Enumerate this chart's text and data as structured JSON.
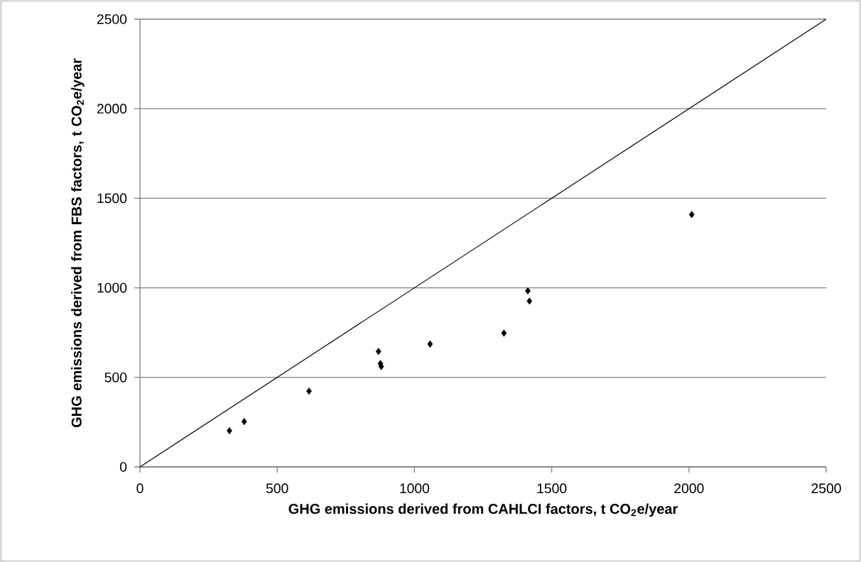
{
  "chart_data": {
    "type": "scatter",
    "xlabel": "GHG emissions derived from CAHLCI factors, t CO$_{2}$e/year",
    "ylabel": "GHG emissions derived from FBS factors, t CO$_{2}$e/year",
    "xlim": [
      0,
      2500
    ],
    "ylim": [
      0,
      2500
    ],
    "xticks": [
      0,
      500,
      1000,
      1500,
      2000,
      2500
    ],
    "yticks": [
      0,
      500,
      1000,
      1500,
      2000,
      2500
    ],
    "grid": "y",
    "series": [
      {
        "color": "#000000",
        "marker": "diamond",
        "x": [
          326,
          380,
          616,
          869,
          876,
          879,
          1057,
          1326,
          1413,
          1419,
          2010
        ],
        "values": [
          202,
          253,
          423,
          645,
          577,
          561,
          686,
          747,
          983,
          926,
          1409
        ]
      },
      {
        "type": "line",
        "color": "#000000",
        "marker": "none",
        "line_style": "solid",
        "x": [
          0,
          2500
        ],
        "values": [
          0,
          2500
        ]
      }
    ]
  }
}
